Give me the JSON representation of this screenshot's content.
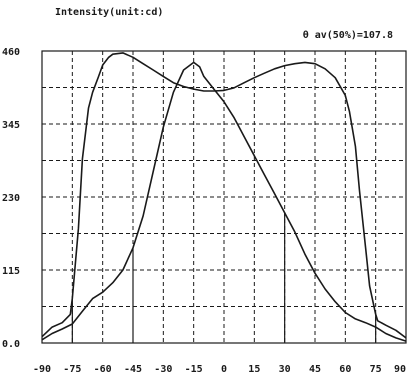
{
  "chart_data": {
    "type": "line",
    "title": "Intensity(unit:cd)",
    "annotation": "θ av(50%)=107.8",
    "x_ticks": [
      "-90",
      "-75",
      "-60",
      "-45",
      "-30",
      "-15",
      "0",
      "15",
      "30",
      "45",
      "60",
      "75",
      "90"
    ],
    "y_ticks": [
      "0.0",
      "115",
      "230",
      "345",
      "460"
    ],
    "xlim": [
      -90,
      90
    ],
    "ylim": [
      0,
      460
    ],
    "grid": true,
    "grid_style": "dashed",
    "series": [
      {
        "x": [
          -90,
          -85,
          -80,
          -76,
          -75,
          -72,
          -70,
          -67,
          -65,
          -62,
          -60,
          -57,
          -55,
          -50,
          -45,
          -40,
          -35,
          -30,
          -25,
          -20,
          -15,
          -10,
          -5,
          0,
          5,
          10,
          15,
          20,
          25,
          30,
          35,
          40,
          45,
          50,
          55,
          60,
          62,
          65,
          67,
          70,
          72,
          75,
          76,
          80,
          85,
          90
        ],
        "y": [
          10,
          25,
          32,
          45,
          70,
          180,
          290,
          370,
          395,
          420,
          438,
          450,
          455,
          457,
          450,
          440,
          430,
          420,
          410,
          404,
          400,
          397,
          397,
          398,
          402,
          410,
          418,
          425,
          432,
          437,
          440,
          442,
          440,
          432,
          418,
          390,
          365,
          310,
          240,
          150,
          90,
          45,
          35,
          28,
          20,
          8
        ]
      },
      {
        "x": [
          -90,
          -85,
          -80,
          -75,
          -70,
          -65,
          -60,
          -55,
          -50,
          -45,
          -40,
          -35,
          -30,
          -25,
          -20,
          -15,
          -12,
          -10,
          -5,
          0,
          5,
          10,
          15,
          20,
          25,
          30,
          35,
          40,
          45,
          50,
          55,
          60,
          65,
          70,
          75,
          80,
          85,
          90
        ],
        "y": [
          5,
          15,
          22,
          30,
          50,
          70,
          80,
          95,
          115,
          150,
          200,
          270,
          340,
          395,
          430,
          442,
          435,
          420,
          400,
          380,
          355,
          325,
          295,
          265,
          235,
          205,
          175,
          140,
          110,
          85,
          65,
          48,
          38,
          32,
          25,
          15,
          8,
          3
        ]
      }
    ],
    "drop_lines": [
      {
        "x": -75,
        "y": 70
      },
      {
        "x": -45,
        "y": 150
      },
      {
        "x": 30,
        "y": 205
      },
      {
        "x": 75,
        "y": 45
      }
    ]
  }
}
